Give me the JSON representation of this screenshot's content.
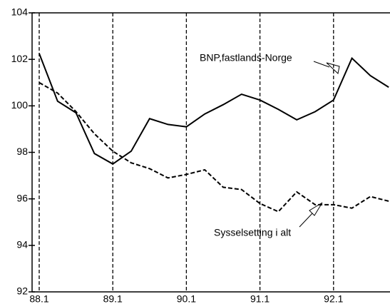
{
  "chart_data": {
    "type": "line",
    "categories": [
      "88.1",
      null,
      null,
      null,
      "89.1",
      null,
      null,
      null,
      "90.1",
      null,
      null,
      null,
      "91.1",
      null,
      null,
      null,
      "92.1",
      null,
      null,
      null
    ],
    "series": [
      {
        "name": "BNP,fastlands-Norge",
        "color": "#000000",
        "dash": false,
        "values": [
          102.25,
          100.2,
          99.7,
          97.95,
          97.5,
          98.05,
          99.45,
          99.2,
          99.1,
          99.65,
          100.05,
          100.5,
          100.25,
          99.85,
          99.4,
          99.75,
          100.25,
          102.05,
          101.3,
          100.8
        ]
      },
      {
        "name": "Sysselsetting i alt",
        "color": "#000000",
        "dash": true,
        "values": [
          101.0,
          100.55,
          99.75,
          98.8,
          98.05,
          97.55,
          97.3,
          96.9,
          97.05,
          97.25,
          96.5,
          96.4,
          95.8,
          95.45,
          96.3,
          95.75,
          95.75,
          95.6,
          96.1,
          95.9
        ]
      }
    ],
    "ylim": [
      92,
      104
    ],
    "yticks": [
      92,
      94,
      96,
      98,
      100,
      102,
      104
    ],
    "grid": true
  }
}
